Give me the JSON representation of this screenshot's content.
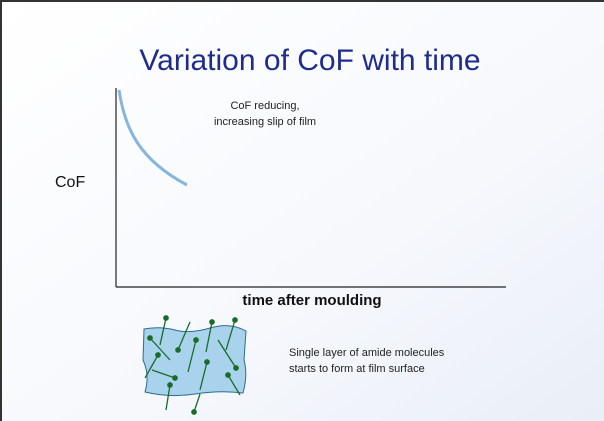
{
  "title": "Variation of CoF with time",
  "y_axis_label": "CoF",
  "x_axis_label": "time after moulding",
  "annotation": [
    "CoF reducing,",
    "increasing slip of film"
  ],
  "caption": [
    "Single layer of amide molecules",
    "starts to form at film surface"
  ]
}
